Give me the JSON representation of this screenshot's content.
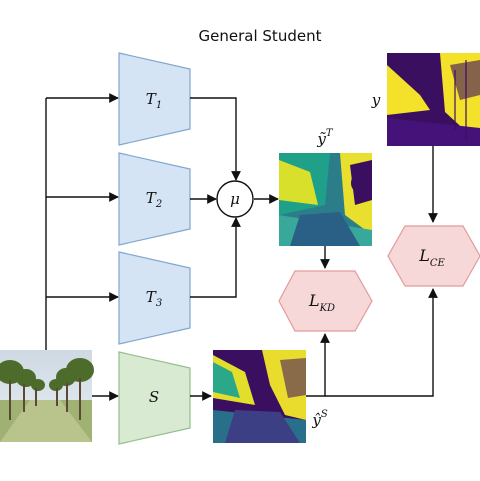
{
  "title": "General Student",
  "teachers": [
    {
      "label": "T",
      "sub": "1"
    },
    {
      "label": "T",
      "sub": "2"
    },
    {
      "label": "T",
      "sub": "3"
    }
  ],
  "student": {
    "label": "S"
  },
  "mean_op": {
    "label": "μ"
  },
  "teacher_output": {
    "label": "ỹ",
    "sup": "T"
  },
  "student_output": {
    "label": "ŷ",
    "sup": "S"
  },
  "ground_truth": {
    "label": "y"
  },
  "loss_kd": {
    "label": "L",
    "sub": "KD"
  },
  "loss_ce": {
    "label": "L",
    "sub": "CE"
  },
  "colors": {
    "teacher_fill": "#d5e4f4",
    "teacher_stroke": "#7fa6cf",
    "student_fill": "#d9ead3",
    "student_stroke": "#93bf8b",
    "loss_fill": "#f7d8d8",
    "loss_stroke": "#e59a9a",
    "segmap_dark": "#3b0f60",
    "segmap_yellow": "#f4e12a",
    "segmap_teal": "#2c8c8a"
  }
}
